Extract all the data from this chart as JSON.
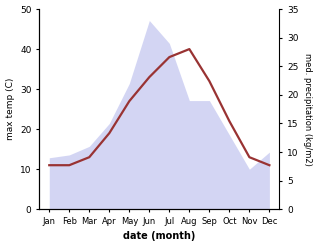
{
  "months": [
    "Jan",
    "Feb",
    "Mar",
    "Apr",
    "May",
    "Jun",
    "Jul",
    "Aug",
    "Sep",
    "Oct",
    "Nov",
    "Dec"
  ],
  "x": [
    1,
    2,
    3,
    4,
    5,
    6,
    7,
    8,
    9,
    10,
    11,
    12
  ],
  "temperature": [
    11,
    11,
    13,
    19,
    27,
    33,
    38,
    40,
    32,
    22,
    13,
    11
  ],
  "precipitation": [
    9,
    9.5,
    11,
    15,
    22,
    33,
    29,
    19,
    19,
    13,
    7,
    10
  ],
  "temp_ylim": [
    0,
    50
  ],
  "precip_ylim": [
    0,
    35
  ],
  "temp_yticks": [
    0,
    10,
    20,
    30,
    40,
    50
  ],
  "precip_yticks": [
    0,
    5,
    10,
    15,
    20,
    25,
    30,
    35
  ],
  "fill_color": "#c5c8f0",
  "fill_alpha": 0.75,
  "line_color": "#993333",
  "line_width": 1.6,
  "xlabel": "date (month)",
  "ylabel_left": "max temp (C)",
  "ylabel_right": "med. precipitation (kg/m2)",
  "bg_color": "#ffffff",
  "xlim": [
    0.5,
    12.5
  ]
}
